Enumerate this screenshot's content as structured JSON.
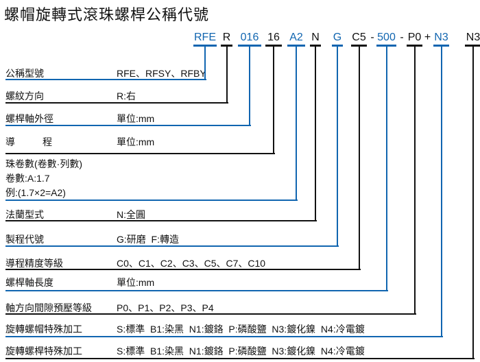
{
  "title": "螺帽旋轉式滾珠螺桿公稱代號",
  "colors": {
    "blue": "#1065b0",
    "black": "#111111"
  },
  "code_segments": [
    {
      "text": "RFE",
      "color": "blue"
    },
    {
      "text": "R",
      "color": "black"
    },
    {
      "text": "016",
      "color": "blue"
    },
    {
      "text": "16",
      "color": "black"
    },
    {
      "text": "A2",
      "color": "blue"
    },
    {
      "text": "N",
      "color": "black"
    },
    {
      "text": "G",
      "color": "blue"
    },
    {
      "text": "C5",
      "color": "black"
    },
    {
      "text": "-",
      "color": "black",
      "separator": true
    },
    {
      "text": "500",
      "color": "blue"
    },
    {
      "text": "-",
      "color": "black",
      "separator": true
    },
    {
      "text": "P0",
      "color": "black"
    },
    {
      "text": "+",
      "color": "black",
      "separator": true
    },
    {
      "text": "N3",
      "color": "blue"
    },
    {
      "text": "N3",
      "color": "black"
    }
  ],
  "rows": [
    {
      "label": "公稱型號",
      "desc": "RFE、RFSY、RFBY",
      "connects_to": "RFE",
      "color": "blue"
    },
    {
      "label": "螺紋方向",
      "desc": "R:右",
      "connects_to": "R",
      "color": "black"
    },
    {
      "label": "螺桿軸外徑",
      "desc": "單位:mm",
      "connects_to": "016",
      "color": "blue"
    },
    {
      "label": "導程",
      "desc": "單位:mm",
      "connects_to": "16",
      "color": "black"
    },
    {
      "label": "珠卷數(卷數·列數)",
      "extra_lines": [
        "卷數:A:1.7",
        "例:(1.7×2=A2)"
      ],
      "connects_to": "A2",
      "color": "blue"
    },
    {
      "label": "法蘭型式",
      "desc": "N:全圓",
      "connects_to": "N",
      "color": "black"
    },
    {
      "label": "製程代號",
      "desc": "G:研磨  F:轉造",
      "connects_to": "G",
      "color": "blue"
    },
    {
      "label": "導程精度等級",
      "desc": "C0、C1、C2、C3、C5、C7、C10",
      "connects_to": "C5",
      "color": "black"
    },
    {
      "label": "螺桿軸長度",
      "desc": "單位:mm",
      "connects_to": "500",
      "color": "blue"
    },
    {
      "label": "軸方向間隙預壓等級",
      "desc": "P0、P1、P2、P3、P4",
      "connects_to": "P0",
      "color": "black"
    },
    {
      "label": "旋轉螺帽特殊加工",
      "desc": "S:標準  B1:染黑  N1:鍍鉻  P:磷酸鹽  N3:鍍化鎳  N4:冷電鍍",
      "connects_to": "N3",
      "color": "blue"
    },
    {
      "label": "旋轉螺桿特殊加工",
      "desc": "S:標準  B1:染黑  N1:鍍鉻  P:磷酸鹽  N3:鍍化鎳  N4:冷電鍍",
      "connects_to": "N3",
      "color": "black"
    }
  ]
}
